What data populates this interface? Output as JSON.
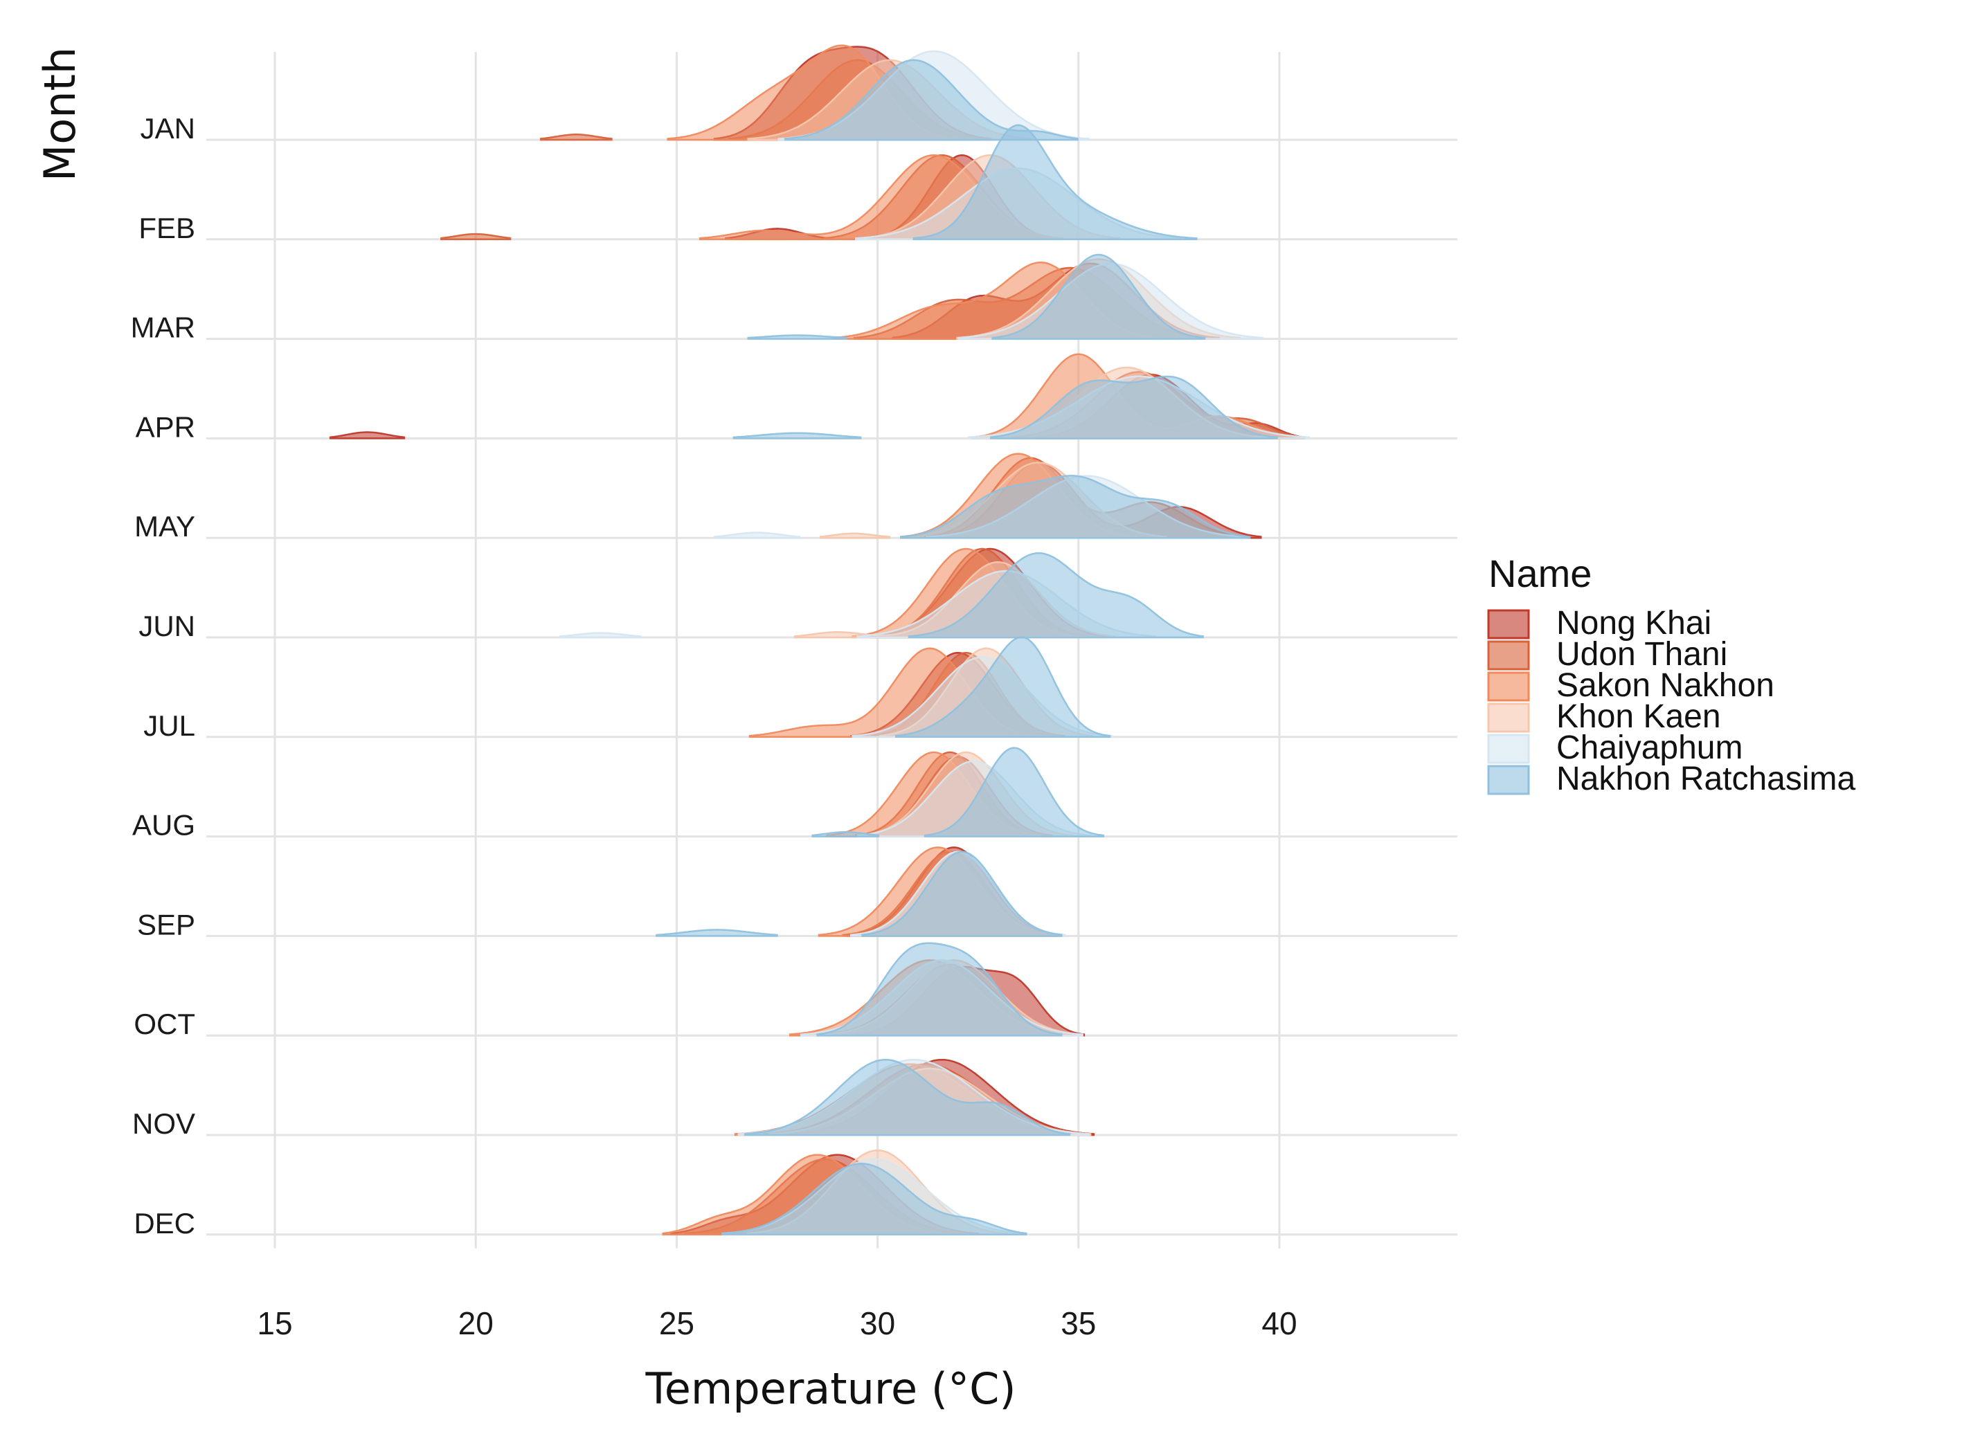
{
  "chart_data": {
    "type": "ridgeline",
    "xlabel": "Temperature (°C)",
    "ylabel": "Month",
    "xlim": [
      13.5,
      44
    ],
    "x_ticks": [
      "15",
      "20",
      "25",
      "30",
      "35",
      "40"
    ],
    "grid": true,
    "legend_title": "Name",
    "legend_position": "right",
    "months": [
      "JAN",
      "FEB",
      "MAR",
      "APR",
      "MAY",
      "JUN",
      "JUL",
      "AUG",
      "SEP",
      "OCT",
      "NOV",
      "DEC"
    ],
    "series": [
      {
        "name": "Nong Khai",
        "color": "#c0392b",
        "months": {
          "JAN": [
            [
              29.9,
              0.95,
              1.0
            ],
            [
              28.2,
              0.65,
              0.8
            ]
          ],
          "FEB": [
            [
              32.1,
              0.95,
              0.8
            ],
            [
              27.5,
              0.12,
              0.6
            ]
          ],
          "MAR": [
            [
              35.3,
              0.85,
              1.1
            ],
            [
              32.5,
              0.45,
              0.8
            ]
          ],
          "APR": [
            [
              36.8,
              0.72,
              1.0
            ],
            [
              17.3,
              0.07,
              0.5
            ],
            [
              39.5,
              0.15,
              0.5
            ]
          ],
          "MAY": [
            [
              34.0,
              0.85,
              0.9
            ],
            [
              37.5,
              0.35,
              0.8
            ]
          ],
          "JUN": [
            [
              32.8,
              1.0,
              1.0
            ]
          ],
          "JUL": [
            [
              32.0,
              0.95,
              0.9
            ]
          ],
          "AUG": [
            [
              32.0,
              0.9,
              0.8
            ]
          ],
          "SEP": [
            [
              31.9,
              1.0,
              0.9
            ]
          ],
          "OCT": [
            [
              32.0,
              0.75,
              0.9
            ],
            [
              33.5,
              0.45,
              0.6
            ]
          ],
          "NOV": [
            [
              31.6,
              0.85,
              1.3
            ]
          ],
          "DEC": [
            [
              29.0,
              0.9,
              1.2
            ],
            [
              26.2,
              0.12,
              0.6
            ]
          ]
        }
      },
      {
        "name": "Udon Thani",
        "color": "#d9623b",
        "months": {
          "JAN": [
            [
              29.5,
              0.9,
              1.1
            ],
            [
              22.5,
              0.06,
              0.5
            ]
          ],
          "FEB": [
            [
              31.6,
              0.95,
              1.0
            ],
            [
              20.0,
              0.06,
              0.5
            ]
          ],
          "MAR": [
            [
              34.8,
              0.8,
              1.2
            ],
            [
              31.8,
              0.4,
              0.9
            ]
          ],
          "APR": [
            [
              36.5,
              0.75,
              1.1
            ],
            [
              39.2,
              0.18,
              0.6
            ]
          ],
          "MAY": [
            [
              33.8,
              0.9,
              0.9
            ],
            [
              36.8,
              0.4,
              0.9
            ]
          ],
          "JUN": [
            [
              32.6,
              1.0,
              0.9
            ]
          ],
          "JUL": [
            [
              32.2,
              0.95,
              0.8
            ]
          ],
          "AUG": [
            [
              31.8,
              0.95,
              0.8
            ]
          ],
          "SEP": [
            [
              31.8,
              0.95,
              0.9
            ]
          ],
          "OCT": [
            [
              31.8,
              0.8,
              1.1
            ]
          ],
          "NOV": [
            [
              31.2,
              0.8,
              1.4
            ]
          ],
          "DEC": [
            [
              28.7,
              0.85,
              1.2
            ]
          ]
        }
      },
      {
        "name": "Sakon Nakhon",
        "color": "#f08a5d",
        "months": {
          "JAN": [
            [
              29.3,
              0.95,
              0.9
            ],
            [
              27.5,
              0.5,
              1.0
            ]
          ],
          "FEB": [
            [
              31.4,
              0.95,
              1.1
            ],
            [
              27.2,
              0.1,
              0.8
            ]
          ],
          "MAR": [
            [
              34.1,
              0.85,
              1.0
            ],
            [
              31.5,
              0.35,
              1.0
            ]
          ],
          "APR": [
            [
              35.0,
              0.95,
              0.9
            ],
            [
              38.5,
              0.25,
              0.8
            ]
          ],
          "MAY": [
            [
              33.5,
              0.95,
              1.0
            ]
          ],
          "JUN": [
            [
              32.2,
              1.0,
              0.95
            ]
          ],
          "JUL": [
            [
              31.3,
              1.0,
              0.9
            ],
            [
              28.5,
              0.12,
              0.8
            ]
          ],
          "AUG": [
            [
              31.4,
              0.95,
              0.9
            ]
          ],
          "SEP": [
            [
              31.5,
              1.0,
              1.0
            ]
          ],
          "OCT": [
            [
              31.3,
              0.85,
              1.2
            ]
          ],
          "NOV": [
            [
              30.8,
              0.8,
              1.5
            ]
          ],
          "DEC": [
            [
              28.5,
              0.9,
              1.1
            ],
            [
              26.0,
              0.14,
              0.6
            ]
          ]
        }
      },
      {
        "name": "Khon Kaen",
        "color": "#f6c6ad",
        "months": {
          "JAN": [
            [
              30.3,
              0.9,
              1.2
            ]
          ],
          "FEB": [
            [
              32.8,
              0.95,
              1.1
            ]
          ],
          "MAR": [
            [
              35.5,
              0.9,
              1.2
            ]
          ],
          "APR": [
            [
              36.2,
              0.8,
              1.2
            ]
          ],
          "MAY": [
            [
              34.0,
              0.85,
              1.1
            ],
            [
              29.4,
              0.05,
              0.5
            ]
          ],
          "JUN": [
            [
              33.0,
              0.85,
              1.0
            ],
            [
              29.0,
              0.06,
              0.6
            ]
          ],
          "JUL": [
            [
              32.7,
              1.0,
              0.9
            ]
          ],
          "AUG": [
            [
              32.2,
              0.95,
              0.9
            ]
          ],
          "SEP": [
            [
              32.0,
              0.95,
              0.9
            ]
          ],
          "OCT": [
            [
              31.9,
              0.85,
              1.1
            ]
          ],
          "NOV": [
            [
              31.3,
              0.75,
              1.4
            ]
          ],
          "DEC": [
            [
              30.0,
              0.95,
              1.1
            ]
          ]
        }
      },
      {
        "name": "Chaiyaphum",
        "color": "#d6e6f1",
        "months": {
          "JAN": [
            [
              31.4,
              1.0,
              1.3
            ]
          ],
          "FEB": [
            [
              33.5,
              0.8,
              1.4
            ]
          ],
          "MAR": [
            [
              35.8,
              0.85,
              1.3
            ]
          ],
          "APR": [
            [
              36.5,
              0.7,
              1.5
            ]
          ],
          "MAY": [
            [
              35.2,
              0.7,
              1.4
            ],
            [
              27.0,
              0.06,
              0.6
            ]
          ],
          "JUN": [
            [
              33.2,
              0.75,
              1.3
            ],
            [
              23.1,
              0.05,
              0.6
            ]
          ],
          "JUL": [
            [
              32.6,
              0.9,
              1.1
            ]
          ],
          "AUG": [
            [
              32.4,
              0.85,
              1.0
            ]
          ],
          "SEP": [
            [
              32.0,
              0.95,
              0.9
            ]
          ],
          "OCT": [
            [
              31.6,
              0.85,
              1.2
            ]
          ],
          "NOV": [
            [
              30.9,
              0.85,
              1.5
            ]
          ],
          "DEC": [
            [
              29.9,
              0.85,
              1.3
            ]
          ]
        }
      },
      {
        "name": "Nakhon Ratchasima",
        "color": "#8fc1de",
        "months": {
          "JAN": [
            [
              30.9,
              0.9,
              1.1
            ],
            [
              34.0,
              0.08,
              0.5
            ]
          ],
          "FEB": [
            [
              33.4,
              1.0,
              0.75
            ],
            [
              34.5,
              0.4,
              1.3
            ]
          ],
          "MAR": [
            [
              35.5,
              0.95,
              0.9
            ],
            [
              28.0,
              0.04,
              0.8
            ]
          ],
          "APR": [
            [
              35.3,
              0.6,
              0.9
            ],
            [
              37.4,
              0.65,
              0.9
            ],
            [
              28.0,
              0.06,
              0.9
            ]
          ],
          "MAY": [
            [
              35.0,
              0.65,
              1.0
            ],
            [
              37.2,
              0.35,
              0.8
            ],
            [
              33.0,
              0.45,
              0.9
            ]
          ],
          "JUN": [
            [
              34.0,
              0.95,
              1.1
            ],
            [
              36.3,
              0.35,
              0.7
            ]
          ],
          "JUL": [
            [
              33.7,
              1.0,
              0.7
            ],
            [
              32.5,
              0.35,
              0.8
            ]
          ],
          "AUG": [
            [
              33.4,
              1.0,
              0.75
            ],
            [
              29.2,
              0.05,
              0.5
            ]
          ],
          "SEP": [
            [
              32.1,
              0.95,
              0.85
            ],
            [
              26.0,
              0.07,
              0.8
            ]
          ],
          "OCT": [
            [
              30.8,
              0.85,
              0.8
            ],
            [
              32.3,
              0.75,
              0.8
            ]
          ],
          "NOV": [
            [
              30.2,
              0.85,
              1.2
            ],
            [
              33.0,
              0.3,
              0.7
            ]
          ],
          "DEC": [
            [
              29.6,
              0.8,
              1.2
            ],
            [
              32.4,
              0.12,
              0.6
            ]
          ]
        }
      }
    ]
  }
}
